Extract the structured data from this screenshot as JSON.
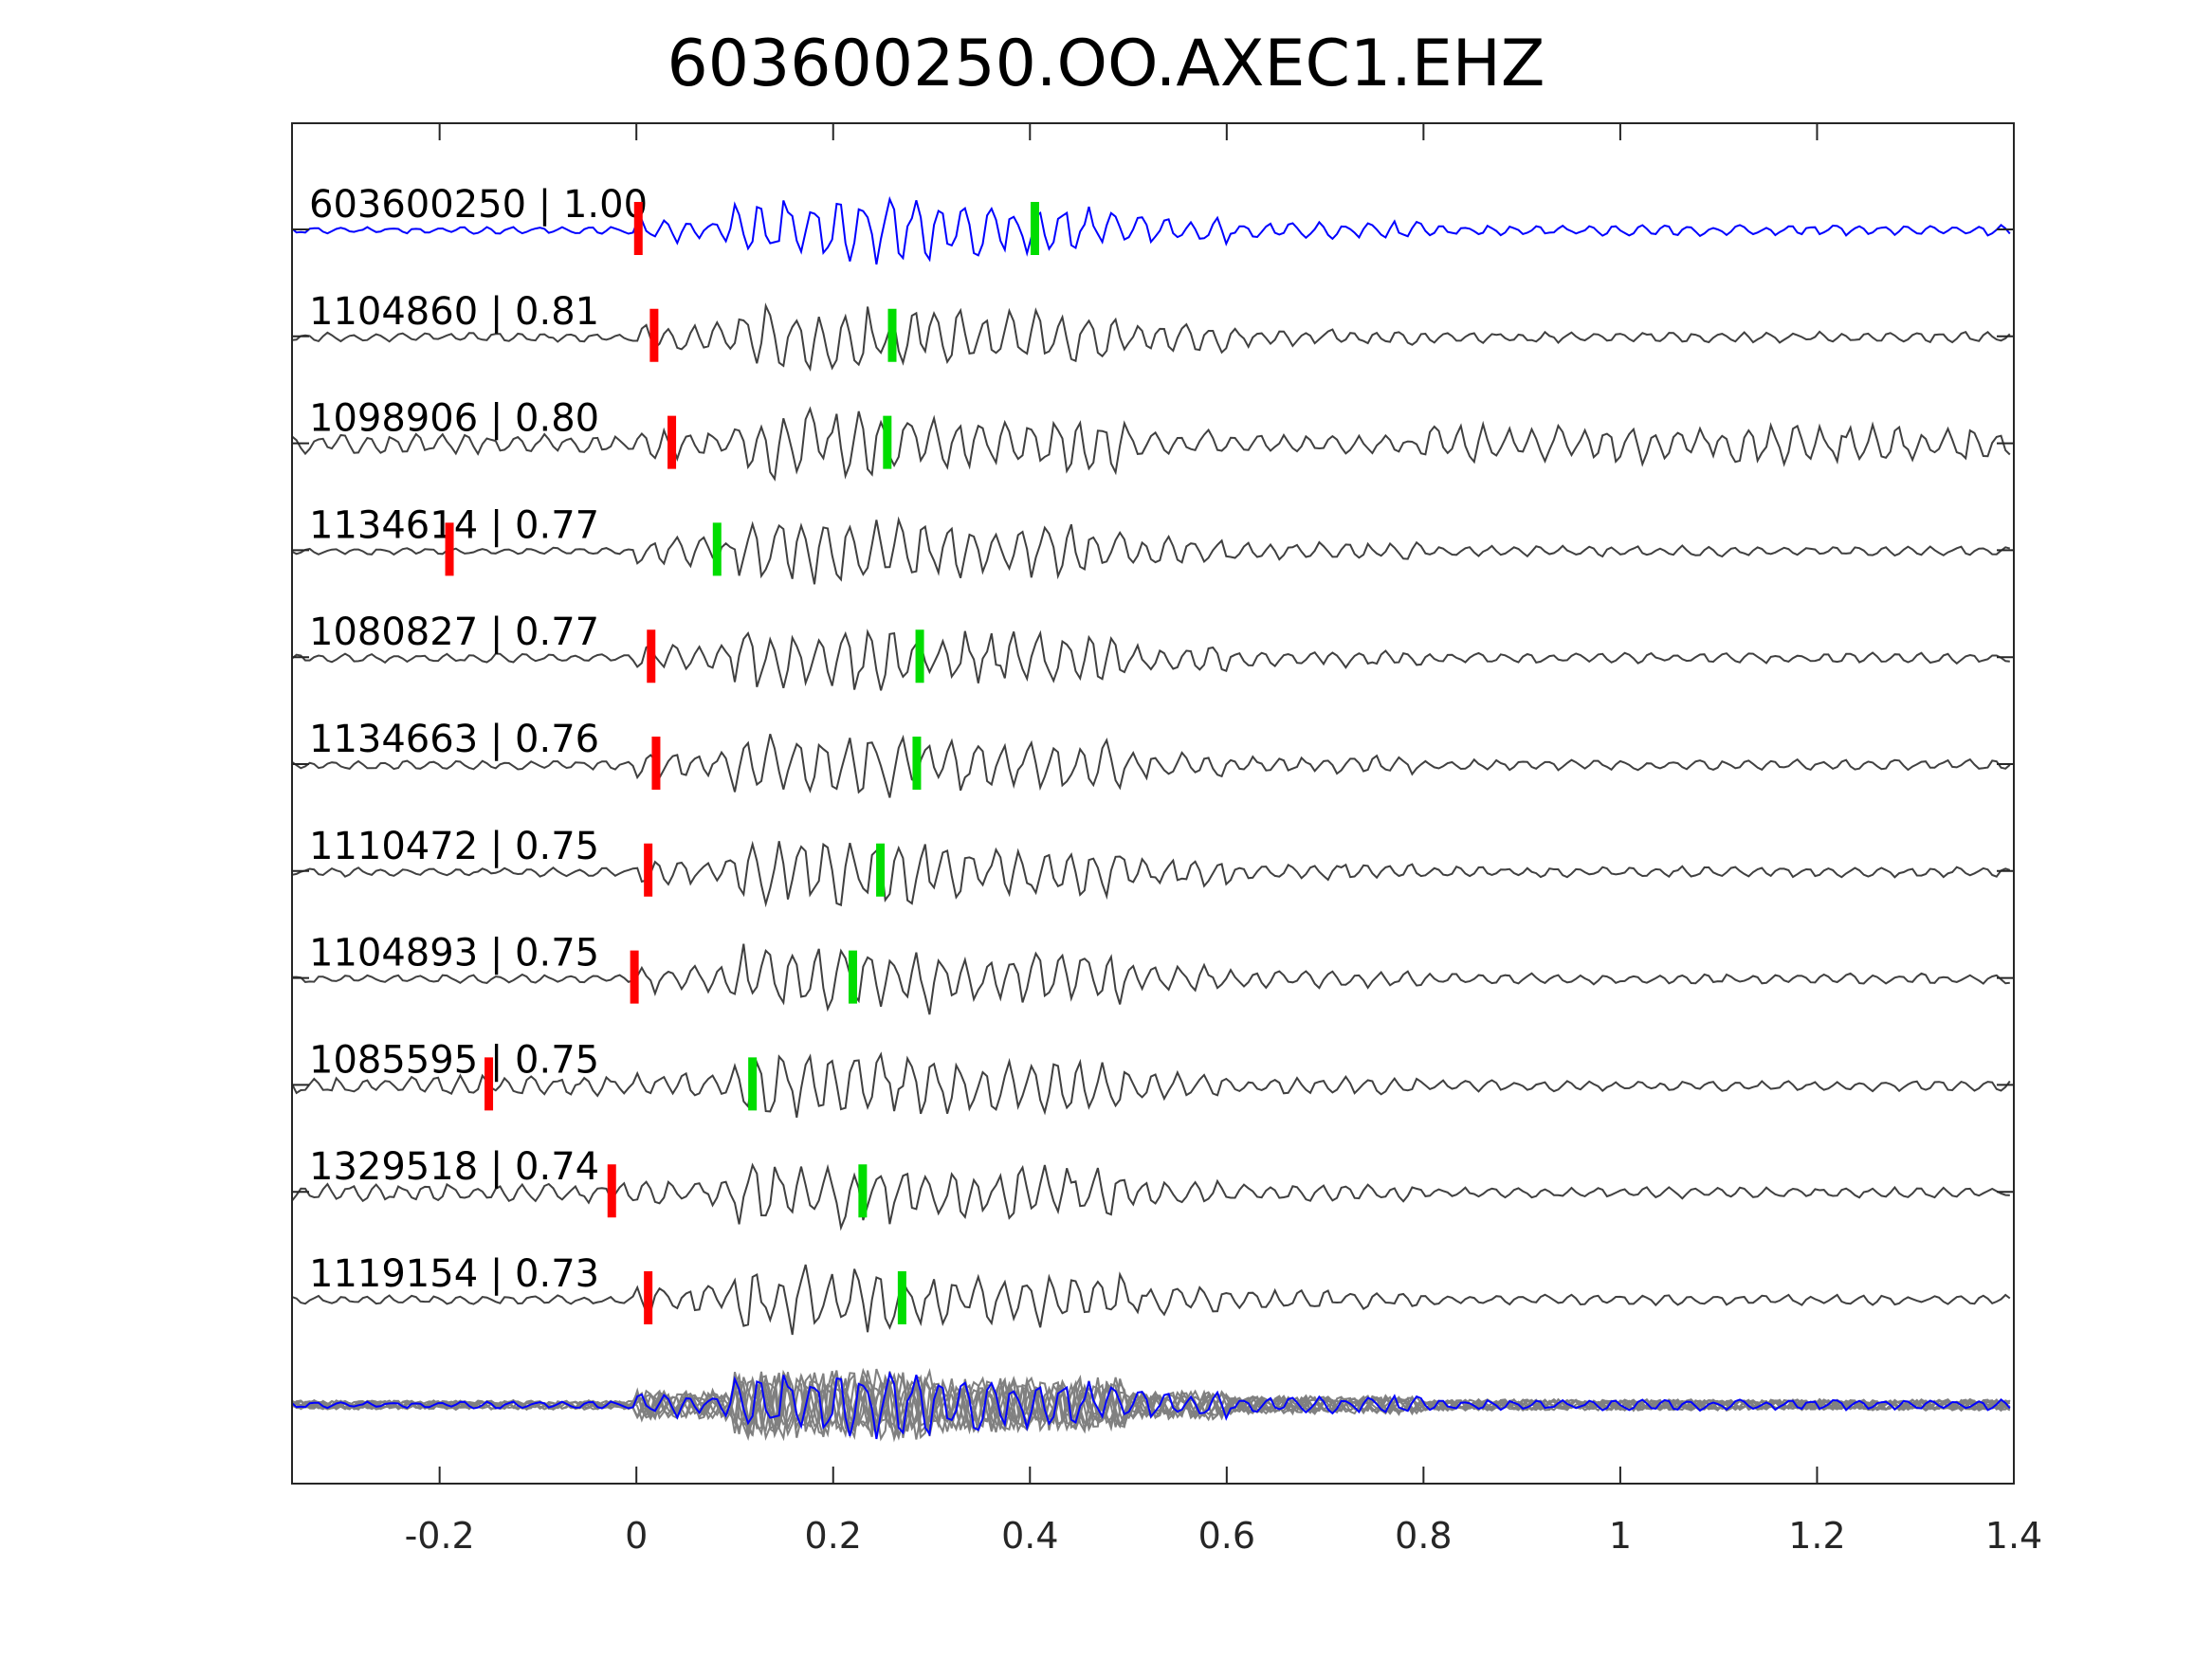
{
  "figure": {
    "title": "603600250.OO.AXEC1.EHZ"
  },
  "chart_data": {
    "type": "line",
    "title": "603600250.OO.AXEC1.EHZ",
    "xlabel": "",
    "ylabel": "",
    "xlim": [
      -0.35,
      1.4
    ],
    "xticks": [
      -0.2,
      0,
      0.2,
      0.4,
      0.6,
      0.8,
      1,
      1.2,
      1.4
    ],
    "xtick_labels": [
      "-0.2",
      "0",
      "0.2",
      "0.4",
      "0.6",
      "0.8",
      "1",
      "1.2",
      "1.4"
    ],
    "grid": false,
    "colors": {
      "template": "#0000ff",
      "trace": "#404040",
      "stack": "#808080",
      "p_pick": "#ff0000",
      "s_pick": "#00dd00"
    },
    "traces": [
      {
        "label": "603600250 | 1.00",
        "p_pick": 0.002,
        "s_pick": 0.405,
        "template": true
      },
      {
        "label": "1104860 | 0.81",
        "p_pick": 0.018,
        "s_pick": 0.26
      },
      {
        "label": "1098906 | 0.80",
        "p_pick": 0.036,
        "s_pick": 0.255
      },
      {
        "label": "1134614 | 0.77",
        "p_pick": -0.19,
        "s_pick": 0.082
      },
      {
        "label": "1080827 | 0.77",
        "p_pick": 0.015,
        "s_pick": 0.288
      },
      {
        "label": "1134663 | 0.76",
        "p_pick": 0.02,
        "s_pick": 0.285
      },
      {
        "label": "1110472 | 0.75",
        "p_pick": 0.012,
        "s_pick": 0.248
      },
      {
        "label": "1104893 | 0.75",
        "p_pick": -0.002,
        "s_pick": 0.22
      },
      {
        "label": "1085595 | 0.75",
        "p_pick": -0.15,
        "s_pick": 0.118
      },
      {
        "label": "1329518 | 0.74",
        "p_pick": -0.025,
        "s_pick": 0.23
      },
      {
        "label": "1119154 | 0.73",
        "p_pick": 0.012,
        "s_pick": 0.27
      }
    ],
    "stack": {
      "overlay_count": 10
    }
  }
}
